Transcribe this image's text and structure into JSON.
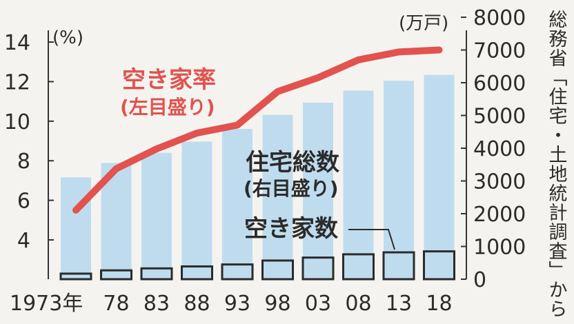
{
  "chart_data": {
    "type": "bar",
    "categories": [
      "1973年",
      "78",
      "83",
      "88",
      "93",
      "98",
      "03",
      "08",
      "13",
      "18"
    ],
    "left_axis": {
      "unit": "(%)",
      "ticks": [
        "4",
        "6",
        "8",
        "10",
        "12",
        "14"
      ],
      "range": [
        3,
        15
      ]
    },
    "right_axis": {
      "unit": "(万戸)",
      "ticks": [
        "0",
        "1000",
        "2000",
        "3000",
        "4000",
        "5000",
        "6000",
        "7000",
        "8000"
      ],
      "range": [
        0,
        8000
      ]
    },
    "series": [
      {
        "name": "住宅総数",
        "name_sub": "(右目盛り)",
        "type": "bar",
        "axis": "right",
        "values": [
          3110,
          3550,
          3860,
          4200,
          4590,
          5020,
          5390,
          5760,
          6060,
          6240
        ]
      },
      {
        "name": "空き家数",
        "type": "bar",
        "axis": "right",
        "values": [
          170,
          270,
          330,
          390,
          450,
          570,
          660,
          760,
          820,
          850
        ]
      },
      {
        "name": "空き家率",
        "name_sub": "(左目盛り)",
        "type": "line",
        "axis": "left",
        "values": [
          5.5,
          7.6,
          8.6,
          9.4,
          9.8,
          11.5,
          12.2,
          13.1,
          13.5,
          13.6
        ]
      }
    ],
    "source": "総務省「住宅・土地統計調査」から",
    "colors": {
      "total_bar": "#bfdcef",
      "line": "#e2524e",
      "vacant_outline": "#2b2b2b",
      "text": "#2b2b2b"
    }
  }
}
